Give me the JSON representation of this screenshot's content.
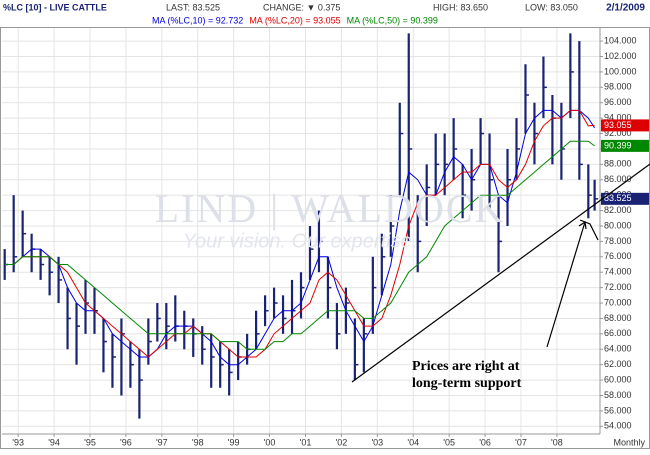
{
  "chart_data": {
    "type": "hlc",
    "title": "%LC [10] - LIVE CATTLE",
    "header": {
      "last": "LAST: 83.525",
      "change": "CHANGE: ▼ 0.375",
      "high": "HIGH: 83.650",
      "low": "LOW: 83.050",
      "date": "2/1/2009"
    },
    "watermark": "LIND | WALDOCK",
    "watermark_tagline": "Your vision. Our expertise.",
    "annotation": "Prices are right at long-term support",
    "period_label": "Monthly",
    "xlim": [
      1992.55,
      2009.2
    ],
    "xticks": [
      {
        "value": 1993,
        "label": "'93"
      },
      {
        "value": 1994,
        "label": "'94"
      },
      {
        "value": 1995,
        "label": "'95"
      },
      {
        "value": 1996,
        "label": "'96"
      },
      {
        "value": 1997,
        "label": "'97"
      },
      {
        "value": 1998,
        "label": "'98"
      },
      {
        "value": 1999,
        "label": "'99"
      },
      {
        "value": 2000,
        "label": "'00"
      },
      {
        "value": 2001,
        "label": "'01"
      },
      {
        "value": 2002,
        "label": "'02"
      },
      {
        "value": 2003,
        "label": "'03"
      },
      {
        "value": 2004,
        "label": "'04"
      },
      {
        "value": 2005,
        "label": "'05"
      },
      {
        "value": 2006,
        "label": "'06"
      },
      {
        "value": 2007,
        "label": "'07"
      },
      {
        "value": 2008,
        "label": "'08"
      }
    ],
    "ylim": [
      53,
      105.7
    ],
    "yticks": [
      {
        "value": 54,
        "label": "54.000"
      },
      {
        "value": 56,
        "label": "56.000"
      },
      {
        "value": 58,
        "label": "58.000"
      },
      {
        "value": 60,
        "label": "60.000"
      },
      {
        "value": 62,
        "label": "62.000"
      },
      {
        "value": 64,
        "label": "64.000"
      },
      {
        "value": 66,
        "label": "66.000"
      },
      {
        "value": 68,
        "label": "68.000"
      },
      {
        "value": 70,
        "label": "70.000"
      },
      {
        "value": 72,
        "label": "72.000"
      },
      {
        "value": 74,
        "label": "74.000"
      },
      {
        "value": 76,
        "label": "76.000"
      },
      {
        "value": 78,
        "label": "78.000"
      },
      {
        "value": 80,
        "label": "80.000"
      },
      {
        "value": 82,
        "label": "82.000"
      },
      {
        "value": 84,
        "label": "84.000"
      },
      {
        "value": 86,
        "label": "86.000"
      },
      {
        "value": 88,
        "label": "88.000"
      },
      {
        "value": 90,
        "label": "90.000"
      },
      {
        "value": 92,
        "label": "92.000"
      },
      {
        "value": 94,
        "label": "94.000"
      },
      {
        "value": 96,
        "label": "96.000"
      },
      {
        "value": 98,
        "label": "98.000"
      },
      {
        "value": 100,
        "label": "100.000"
      },
      {
        "value": 102,
        "label": "102.000"
      },
      {
        "value": 104,
        "label": "104.000"
      }
    ],
    "grid": true,
    "x": [
      1992.625,
      1992.875,
      1993.125,
      1993.375,
      1993.625,
      1993.875,
      1994.125,
      1994.375,
      1994.625,
      1994.875,
      1995.125,
      1995.375,
      1995.625,
      1995.875,
      1996.125,
      1996.375,
      1996.625,
      1996.875,
      1997.125,
      1997.375,
      1997.625,
      1997.875,
      1998.125,
      1998.375,
      1998.625,
      1998.875,
      1999.125,
      1999.375,
      1999.625,
      1999.875,
      2000.125,
      2000.375,
      2000.625,
      2000.875,
      2001.125,
      2001.375,
      2001.625,
      2001.875,
      2002.125,
      2002.375,
      2002.625,
      2002.875,
      2003.125,
      2003.375,
      2003.625,
      2003.875,
      2004.125,
      2004.375,
      2004.625,
      2004.875,
      2005.125,
      2005.375,
      2005.625,
      2005.875,
      2006.125,
      2006.375,
      2006.625,
      2006.875,
      2007.125,
      2007.375,
      2007.625,
      2007.875,
      2008.125,
      2008.375,
      2008.625,
      2008.875,
      2009.05
    ],
    "bar_color": "#1a2373",
    "high": [
      77,
      84,
      82,
      79,
      77,
      76,
      76,
      72,
      70,
      73,
      72,
      68,
      66,
      68,
      65,
      64,
      68,
      70,
      70,
      71,
      69,
      68,
      67,
      66,
      65,
      64,
      65,
      66,
      69,
      71,
      72,
      71,
      73,
      74,
      80,
      82,
      76,
      70,
      72,
      68,
      68,
      76,
      79,
      84,
      96,
      105,
      84,
      88,
      92,
      92,
      94,
      88,
      90,
      94,
      92,
      84,
      90,
      94,
      101,
      96,
      102,
      97,
      96,
      105,
      104,
      88,
      86
    ],
    "low": [
      73,
      74,
      76,
      74,
      73,
      71,
      70,
      64,
      62,
      66,
      66,
      61,
      59,
      58,
      59,
      55,
      62,
      65,
      64,
      65,
      64,
      63,
      62,
      59,
      59,
      58,
      60,
      62,
      64,
      67,
      68,
      66,
      66,
      68,
      73,
      74,
      68,
      64,
      66,
      60,
      61,
      66,
      71,
      76,
      84,
      78,
      74,
      80,
      84,
      84,
      86,
      81,
      82,
      88,
      82,
      74,
      80,
      86,
      92,
      88,
      94,
      88,
      86,
      94,
      86,
      81,
      82
    ],
    "close": [
      75,
      76,
      79,
      77,
      75,
      74,
      73,
      68,
      67,
      70,
      69,
      65,
      63,
      66,
      62,
      60,
      65,
      68,
      67,
      67,
      67,
      66,
      64,
      63,
      62,
      61,
      63,
      64,
      66,
      69,
      70,
      68,
      69,
      72,
      77,
      78,
      72,
      66,
      70,
      62,
      66,
      72,
      76,
      80,
      92,
      90,
      78,
      85,
      88,
      88,
      90,
      84,
      86,
      92,
      86,
      78,
      86,
      90,
      97,
      92,
      98,
      94,
      90,
      100,
      88,
      84,
      83.525
    ],
    "close_label": "83.525",
    "series": [
      {
        "name": "MA (%LC,10) = 92.732",
        "color": "#0000dd",
        "values": [
          75,
          75,
          76,
          77,
          77,
          76,
          75,
          72,
          70,
          69,
          69,
          68,
          66,
          65,
          64,
          63,
          63,
          64,
          66,
          67,
          67,
          67,
          66,
          65,
          63,
          62,
          62,
          63,
          64,
          66,
          68,
          69,
          69,
          70,
          73,
          76,
          76,
          72,
          69,
          67,
          65,
          67,
          71,
          75,
          82,
          87,
          86,
          84,
          84,
          87,
          89,
          88,
          86,
          88,
          88,
          84,
          83,
          87,
          92,
          94,
          95,
          95,
          94,
          95,
          95,
          94,
          92.732
        ]
      },
      {
        "name": "MA (%LC,20) = 93.055",
        "color": "#dd0000",
        "last_label": "93.055",
        "values": [
          75,
          75,
          76,
          76,
          76,
          76,
          75,
          74,
          72,
          70,
          69,
          68,
          67,
          66,
          65,
          64,
          63,
          64,
          65,
          66,
          66,
          67,
          66,
          66,
          65,
          64,
          63,
          63,
          63,
          64,
          66,
          67,
          68,
          69,
          70,
          73,
          74,
          73,
          71,
          69,
          67,
          67,
          68,
          71,
          75,
          80,
          83,
          84,
          84,
          85,
          86,
          87,
          87,
          88,
          88,
          86,
          85,
          86,
          88,
          91,
          93,
          94,
          94,
          95,
          95,
          93,
          93.055
        ]
      },
      {
        "name": "MA (%LC,50) = 90.399",
        "color": "#008800",
        "last_label": "90.399",
        "values": [
          75,
          75,
          76,
          76,
          76,
          76,
          75,
          75,
          74,
          73,
          72,
          71,
          70,
          69,
          68,
          67,
          66,
          66,
          66,
          66,
          66,
          66,
          66,
          66,
          65,
          65,
          65,
          64,
          64,
          64,
          65,
          65,
          66,
          66,
          67,
          68,
          69,
          69,
          69,
          69,
          68,
          68,
          69,
          70,
          72,
          74,
          75,
          76,
          78,
          80,
          81,
          82,
          83,
          84,
          84,
          84,
          84,
          85,
          86,
          87,
          88,
          89,
          90,
          91,
          91,
          91,
          90.399
        ]
      }
    ]
  }
}
